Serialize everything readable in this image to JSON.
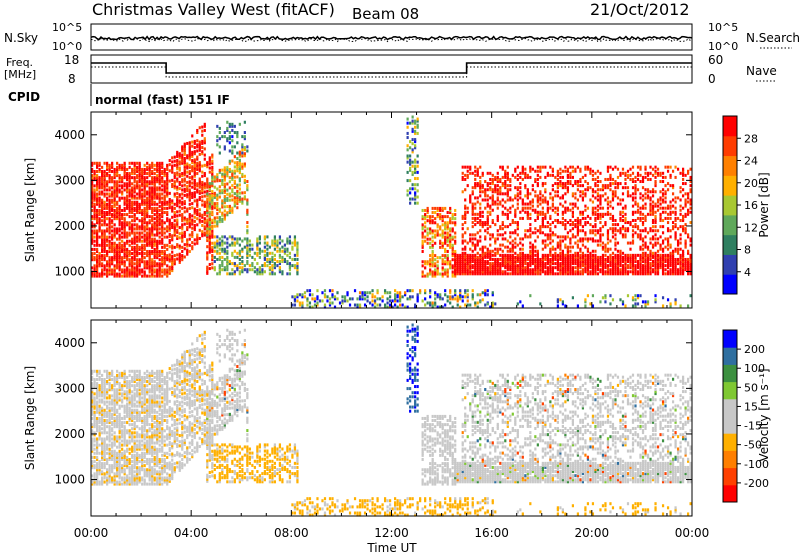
{
  "header": {
    "station": "Christmas Valley West (fitACF)",
    "beam": "Beam 08",
    "date": "21/Oct/2012"
  },
  "noise_panel": {
    "left_label": "N.Sky",
    "right_label": "N.Search",
    "left_ticks": [
      "10^5",
      "10^0"
    ],
    "right_ticks": [
      "10^5",
      "10^0"
    ]
  },
  "freq_panel": {
    "left_label_1": "Freq.",
    "left_label_2": "[MHz]",
    "right_label": "Nave",
    "left_ticks": [
      "18",
      "8"
    ],
    "right_ticks": [
      "60",
      "0"
    ]
  },
  "cpid": {
    "label": "CPID",
    "text": "normal (fast) 151 IF"
  },
  "colors": {
    "power_scale": [
      "#0000ff",
      "#3040b0",
      "#2f7f60",
      "#5fa85a",
      "#a8c832",
      "#ffb000",
      "#ff8000",
      "#ff3c00",
      "#ff0000"
    ],
    "velocity_scale": [
      "#ff0000",
      "#ff4000",
      "#ff7f00",
      "#ffb000",
      "#c8c8c8",
      "#c8c8c8",
      "#7fc832",
      "#3c9040",
      "#2f6fa0",
      "#0000ff"
    ]
  },
  "chart_data": [
    {
      "type": "heatmap",
      "name": "power",
      "ylabel": "Slant Range [km]",
      "ylim": [
        200,
        4500
      ],
      "y_ticks": [
        1000,
        2000,
        3000,
        4000
      ],
      "x_ticks": [
        "00:00",
        "04:00",
        "08:00",
        "12:00",
        "16:00",
        "20:00",
        "00:00"
      ],
      "xlim_hours": [
        0,
        24
      ],
      "colorbar": {
        "label": "Power [dB]",
        "ticks": [
          "4",
          "8",
          "12",
          "16",
          "20",
          "24",
          "28"
        ],
        "range": [
          0,
          30
        ]
      }
    },
    {
      "type": "heatmap",
      "name": "velocity",
      "ylabel": "Slant Range [km]",
      "ylim": [
        200,
        4500
      ],
      "y_ticks": [
        1000,
        2000,
        3000,
        4000
      ],
      "x_ticks": [
        "00:00",
        "04:00",
        "08:00",
        "12:00",
        "16:00",
        "20:00",
        "00:00"
      ],
      "xlabel": "Time UT",
      "xlim_hours": [
        0,
        24
      ],
      "colorbar": {
        "label": "Velocity [m s⁻¹]",
        "ticks": [
          "200",
          "100",
          "50",
          "15",
          "-15",
          "-50",
          "-100",
          "-200"
        ],
        "range": [
          -250,
          250
        ]
      }
    }
  ]
}
